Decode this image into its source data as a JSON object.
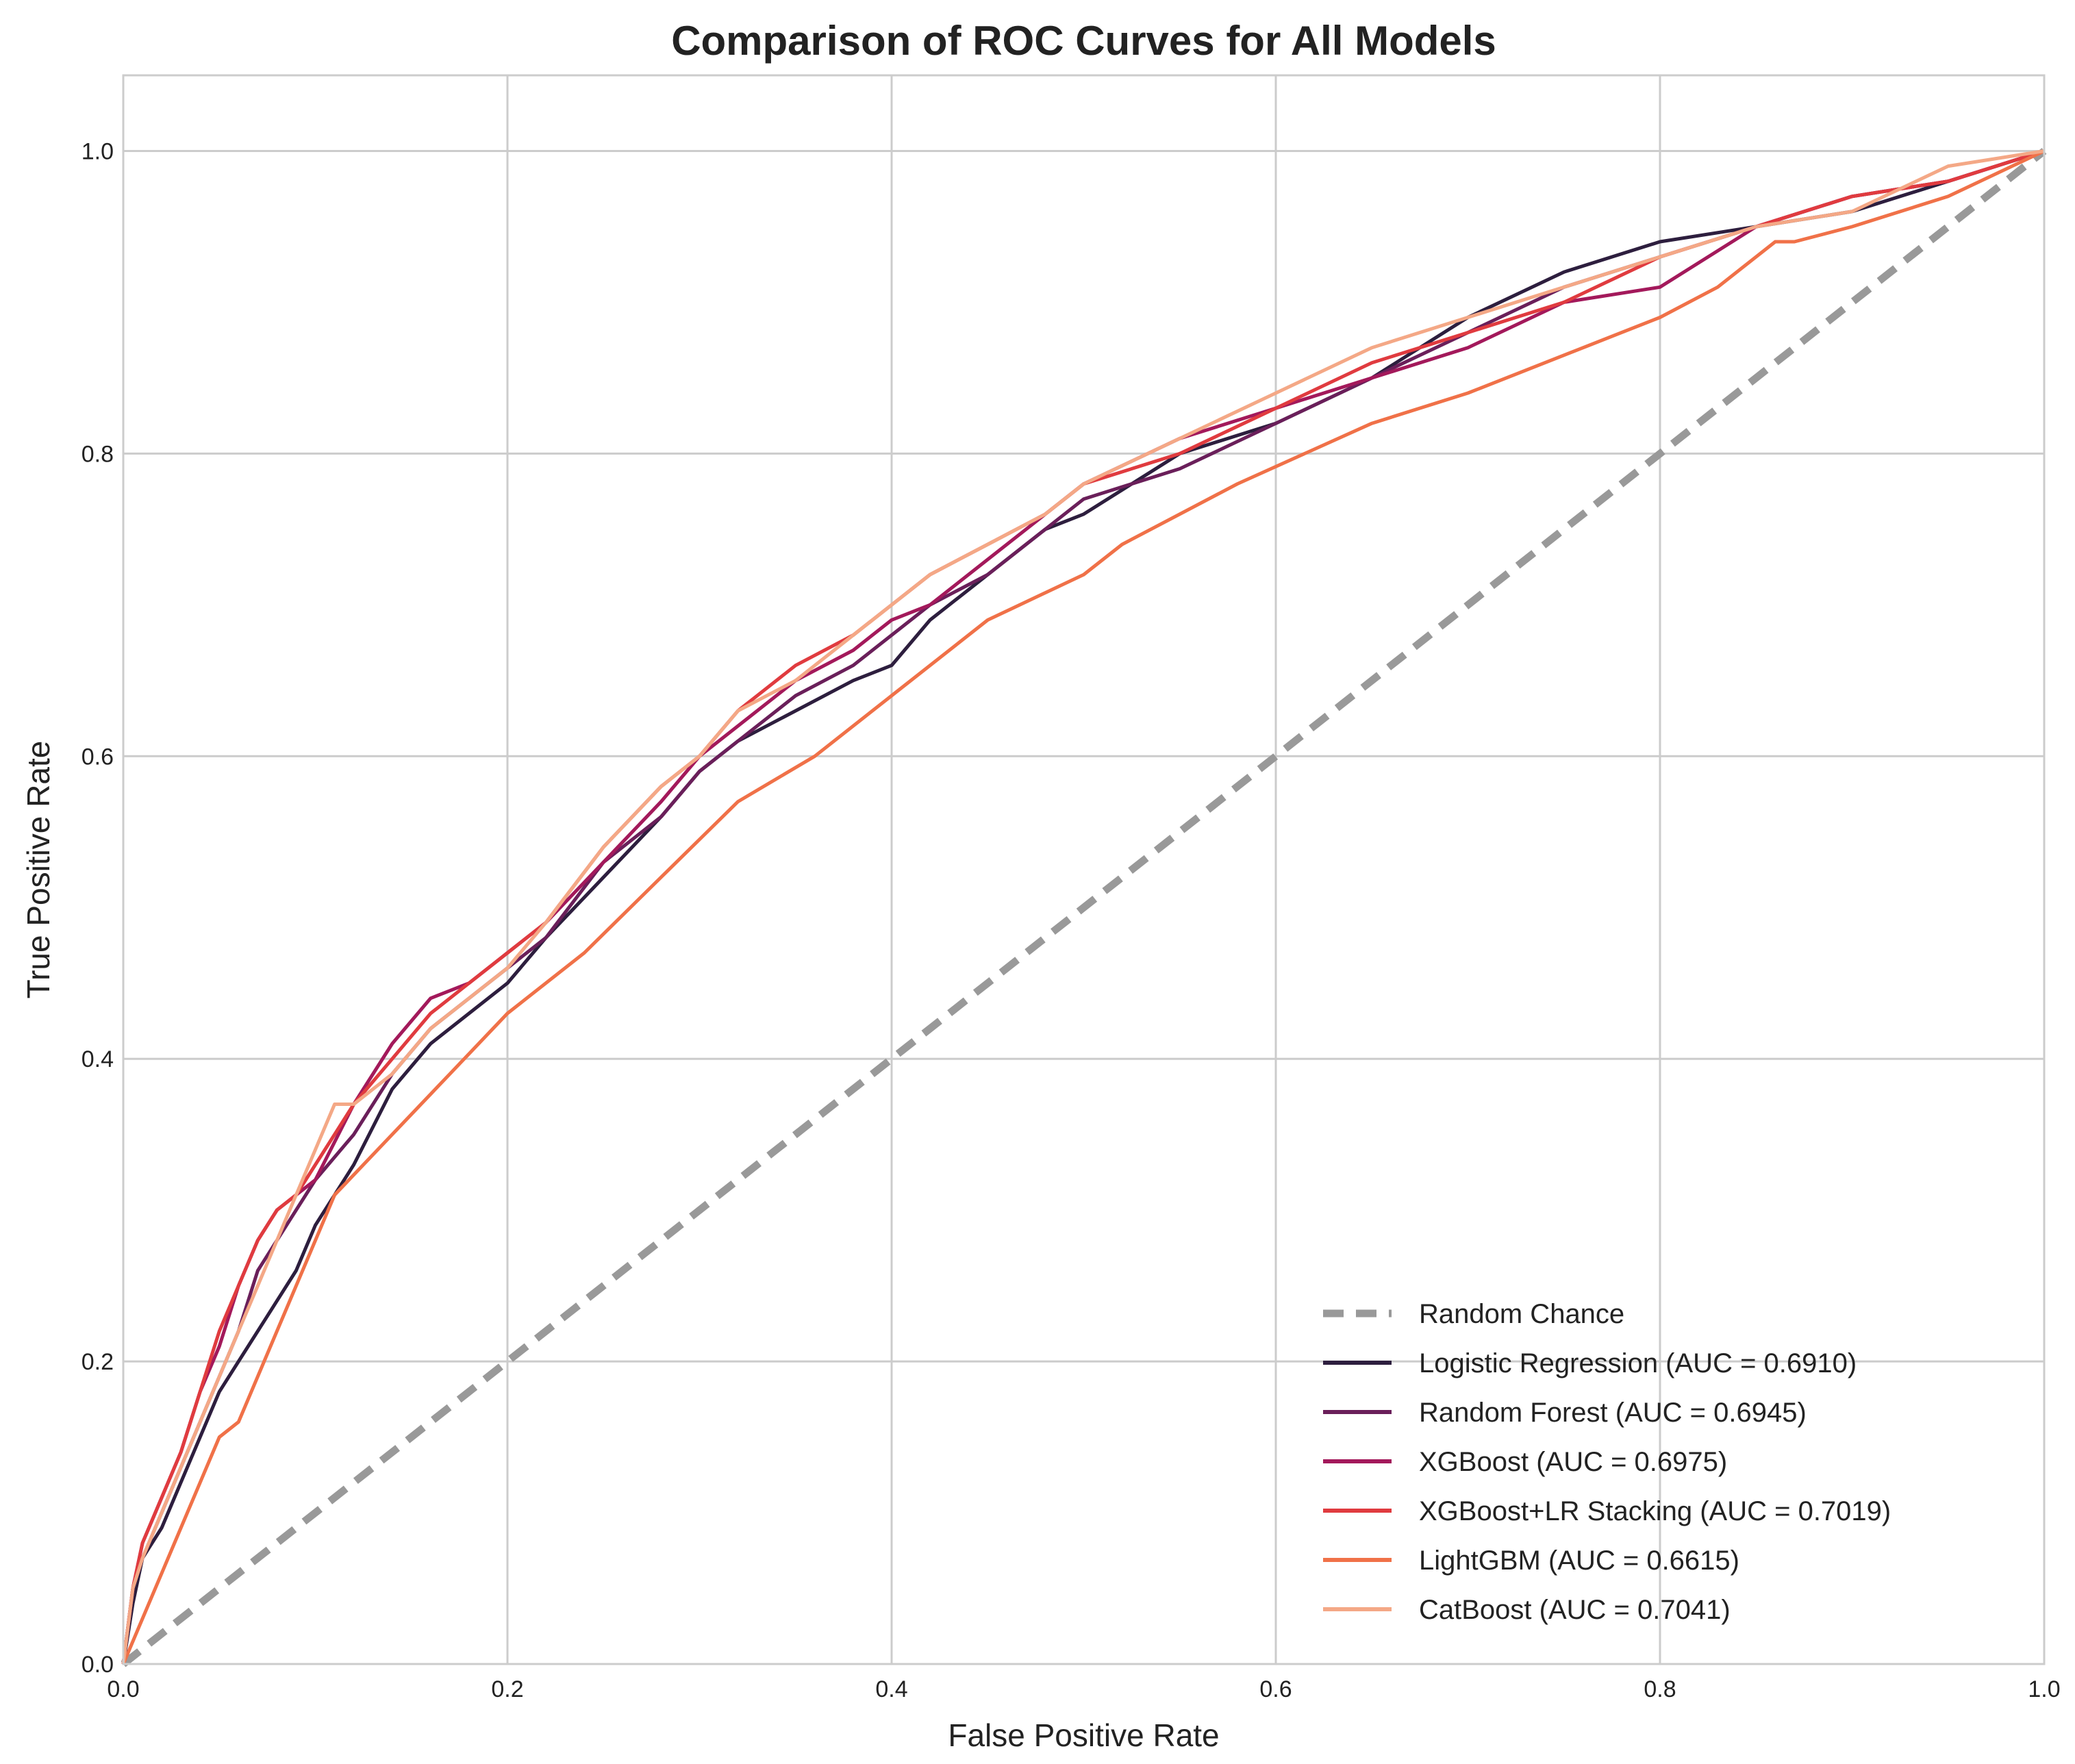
{
  "chart_data": {
    "type": "line",
    "title": "Comparison of ROC Curves for All Models",
    "xlabel": "False Positive Rate",
    "ylabel": "True Positive Rate",
    "xlim": [
      0.0,
      1.0
    ],
    "ylim": [
      0.0,
      1.05
    ],
    "xticks": [
      "0.0",
      "0.2",
      "0.4",
      "0.6",
      "0.8",
      "1.0"
    ],
    "yticks": [
      "0.0",
      "0.2",
      "0.4",
      "0.6",
      "0.8",
      "1.0"
    ],
    "grid": true,
    "legend_position": "lower-right",
    "series": [
      {
        "name": "Random Chance",
        "color": "#999999",
        "dashed": true,
        "x": [
          0.0,
          1.0
        ],
        "y": [
          0.0,
          1.0
        ]
      },
      {
        "name": "Logistic Regression (AUC = 0.6910)",
        "color": "#2d1e3e",
        "x": [
          0.0,
          0.005,
          0.01,
          0.02,
          0.03,
          0.04,
          0.05,
          0.06,
          0.07,
          0.08,
          0.09,
          0.1,
          0.12,
          0.14,
          0.16,
          0.18,
          0.2,
          0.22,
          0.25,
          0.28,
          0.3,
          0.32,
          0.35,
          0.38,
          0.4,
          0.42,
          0.45,
          0.48,
          0.5,
          0.55,
          0.6,
          0.65,
          0.7,
          0.75,
          0.8,
          0.85,
          0.9,
          0.95,
          1.0
        ],
        "y": [
          0.0,
          0.04,
          0.07,
          0.09,
          0.12,
          0.15,
          0.18,
          0.2,
          0.22,
          0.24,
          0.26,
          0.29,
          0.33,
          0.38,
          0.41,
          0.43,
          0.45,
          0.48,
          0.52,
          0.56,
          0.59,
          0.61,
          0.63,
          0.65,
          0.66,
          0.69,
          0.72,
          0.75,
          0.76,
          0.8,
          0.82,
          0.85,
          0.89,
          0.92,
          0.94,
          0.95,
          0.96,
          0.98,
          1.0
        ]
      },
      {
        "name": "Random Forest (AUC = 0.6945)",
        "color": "#6a1f5a",
        "x": [
          0.0,
          0.005,
          0.01,
          0.02,
          0.03,
          0.04,
          0.05,
          0.06,
          0.07,
          0.08,
          0.09,
          0.1,
          0.12,
          0.14,
          0.16,
          0.18,
          0.2,
          0.22,
          0.25,
          0.28,
          0.3,
          0.32,
          0.35,
          0.38,
          0.4,
          0.42,
          0.45,
          0.48,
          0.5,
          0.55,
          0.6,
          0.65,
          0.7,
          0.75,
          0.8,
          0.85,
          0.9,
          0.95,
          1.0
        ],
        "y": [
          0.0,
          0.05,
          0.07,
          0.1,
          0.13,
          0.16,
          0.19,
          0.22,
          0.26,
          0.28,
          0.3,
          0.32,
          0.35,
          0.39,
          0.42,
          0.44,
          0.46,
          0.48,
          0.53,
          0.56,
          0.59,
          0.61,
          0.64,
          0.66,
          0.68,
          0.7,
          0.72,
          0.75,
          0.77,
          0.79,
          0.82,
          0.85,
          0.88,
          0.91,
          0.93,
          0.95,
          0.97,
          0.98,
          1.0
        ]
      },
      {
        "name": "XGBoost (AUC = 0.6975)",
        "color": "#a3195b",
        "x": [
          0.0,
          0.005,
          0.01,
          0.02,
          0.03,
          0.04,
          0.05,
          0.06,
          0.07,
          0.08,
          0.09,
          0.1,
          0.12,
          0.14,
          0.16,
          0.18,
          0.2,
          0.22,
          0.25,
          0.28,
          0.3,
          0.32,
          0.35,
          0.38,
          0.4,
          0.42,
          0.45,
          0.48,
          0.5,
          0.55,
          0.6,
          0.65,
          0.7,
          0.75,
          0.8,
          0.85,
          0.9,
          0.95,
          1.0
        ],
        "y": [
          0.0,
          0.05,
          0.08,
          0.11,
          0.14,
          0.18,
          0.21,
          0.25,
          0.28,
          0.3,
          0.31,
          0.32,
          0.37,
          0.41,
          0.44,
          0.45,
          0.47,
          0.49,
          0.53,
          0.57,
          0.6,
          0.62,
          0.65,
          0.67,
          0.69,
          0.7,
          0.73,
          0.76,
          0.78,
          0.81,
          0.83,
          0.85,
          0.87,
          0.9,
          0.91,
          0.95,
          0.97,
          0.98,
          1.0
        ]
      },
      {
        "name": "XGBoost+LR Stacking (AUC = 0.7019)",
        "color": "#e03b3f",
        "x": [
          0.0,
          0.005,
          0.01,
          0.02,
          0.03,
          0.04,
          0.05,
          0.06,
          0.07,
          0.08,
          0.09,
          0.1,
          0.12,
          0.14,
          0.16,
          0.18,
          0.2,
          0.22,
          0.25,
          0.28,
          0.3,
          0.32,
          0.35,
          0.38,
          0.4,
          0.42,
          0.45,
          0.48,
          0.5,
          0.55,
          0.6,
          0.65,
          0.7,
          0.75,
          0.8,
          0.85,
          0.9,
          0.95,
          1.0
        ],
        "y": [
          0.0,
          0.05,
          0.08,
          0.11,
          0.14,
          0.18,
          0.22,
          0.25,
          0.28,
          0.3,
          0.31,
          0.33,
          0.37,
          0.4,
          0.43,
          0.45,
          0.47,
          0.49,
          0.54,
          0.58,
          0.6,
          0.63,
          0.66,
          0.68,
          0.7,
          0.72,
          0.74,
          0.76,
          0.78,
          0.8,
          0.83,
          0.86,
          0.88,
          0.9,
          0.93,
          0.95,
          0.97,
          0.98,
          1.0
        ]
      },
      {
        "name": "LightGBM (AUC = 0.6615)",
        "color": "#f07148",
        "x": [
          0.0,
          0.05,
          0.06,
          0.08,
          0.11,
          0.14,
          0.17,
          0.2,
          0.24,
          0.28,
          0.32,
          0.36,
          0.4,
          0.45,
          0.5,
          0.52,
          0.58,
          0.65,
          0.7,
          0.76,
          0.78,
          0.8,
          0.83,
          0.86,
          0.87,
          0.9,
          0.95,
          1.0
        ],
        "y": [
          0.0,
          0.15,
          0.16,
          0.22,
          0.31,
          0.35,
          0.39,
          0.43,
          0.47,
          0.52,
          0.57,
          0.6,
          0.64,
          0.69,
          0.72,
          0.74,
          0.78,
          0.82,
          0.84,
          0.87,
          0.88,
          0.89,
          0.91,
          0.94,
          0.94,
          0.95,
          0.97,
          1.0
        ]
      },
      {
        "name": "CatBoost (AUC = 0.7041)",
        "color": "#f4a886",
        "x": [
          0.0,
          0.005,
          0.01,
          0.02,
          0.03,
          0.04,
          0.05,
          0.06,
          0.07,
          0.08,
          0.09,
          0.1,
          0.11,
          0.12,
          0.14,
          0.16,
          0.18,
          0.2,
          0.22,
          0.25,
          0.28,
          0.3,
          0.32,
          0.35,
          0.38,
          0.4,
          0.42,
          0.45,
          0.48,
          0.5,
          0.55,
          0.6,
          0.65,
          0.7,
          0.75,
          0.8,
          0.85,
          0.9,
          0.95,
          1.0
        ],
        "y": [
          0.0,
          0.05,
          0.07,
          0.1,
          0.13,
          0.16,
          0.19,
          0.22,
          0.25,
          0.28,
          0.31,
          0.34,
          0.37,
          0.37,
          0.39,
          0.42,
          0.44,
          0.46,
          0.49,
          0.54,
          0.58,
          0.6,
          0.63,
          0.65,
          0.68,
          0.7,
          0.72,
          0.74,
          0.76,
          0.78,
          0.81,
          0.84,
          0.87,
          0.89,
          0.91,
          0.93,
          0.95,
          0.96,
          0.99,
          1.0
        ]
      }
    ]
  }
}
